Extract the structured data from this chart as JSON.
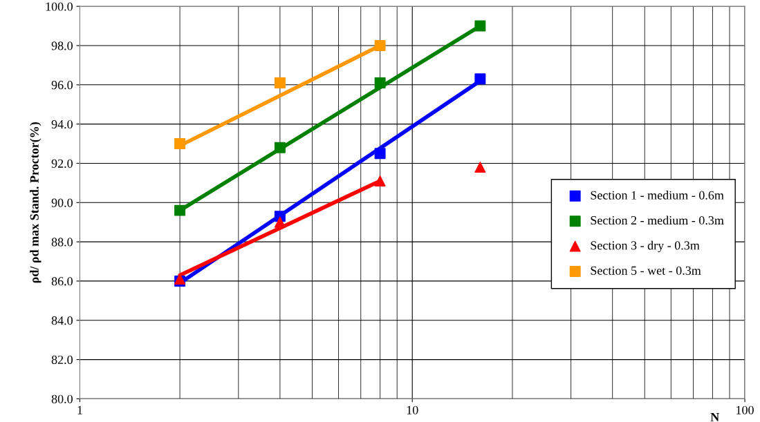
{
  "chart_data": {
    "type": "scatter",
    "xlabel": "N",
    "ylabel": "ρd/ ρd max Stand. Proctor(%)",
    "log": "x",
    "xlim": [
      1,
      100
    ],
    "xticks": [
      1,
      10,
      100
    ],
    "ylim": [
      80,
      100
    ],
    "yticks": [
      {
        "value": 80,
        "label": "80.0"
      },
      {
        "value": 82,
        "label": "82.0"
      },
      {
        "value": 84,
        "label": "84.0"
      },
      {
        "value": 86,
        "label": "86.0"
      },
      {
        "value": 88,
        "label": "88.0"
      },
      {
        "value": 90,
        "label": "90.0"
      },
      {
        "value": 92,
        "label": "92.0"
      },
      {
        "value": 94,
        "label": "94.0"
      },
      {
        "value": 96,
        "label": "96.0"
      },
      {
        "value": 98,
        "label": "98.0"
      },
      {
        "value": 100,
        "label": "100.0"
      }
    ],
    "grid": true,
    "legend": "right",
    "series": [
      {
        "type": "line",
        "color": "#0000ff",
        "x": [
          2,
          16
        ],
        "values": [
          85.9,
          96.2
        ],
        "marker": "none"
      },
      {
        "type": "line",
        "color": "#008000",
        "x": [
          2,
          16
        ],
        "values": [
          89.6,
          99.0
        ],
        "marker": "none"
      },
      {
        "type": "line",
        "color": "#ff0000",
        "x": [
          2,
          8
        ],
        "values": [
          86.3,
          91.1
        ],
        "marker": "none"
      },
      {
        "type": "line",
        "color": "#ff9900",
        "x": [
          2,
          8
        ],
        "values": [
          92.9,
          98.0
        ],
        "marker": "none"
      },
      {
        "name": "Section 1 - medium - 0.6m",
        "color": "#0000ff",
        "x": [
          2,
          4,
          8,
          16
        ],
        "values": [
          86.0,
          89.3,
          92.5,
          96.3
        ],
        "marker": "square"
      },
      {
        "name": "Section 2 - medium - 0.3m",
        "color": "#008000",
        "x": [
          2,
          4,
          8,
          16
        ],
        "values": [
          89.6,
          92.8,
          96.1,
          99.0
        ],
        "marker": "square"
      },
      {
        "name": "Section 3 - dry - 0.3m",
        "color": "#ff0000",
        "x": [
          2,
          4,
          8,
          16
        ],
        "values": [
          86.1,
          89.0,
          91.1,
          91.8
        ],
        "marker": "triangle"
      },
      {
        "name": "Section 5 - wet - 0.3m",
        "color": "#ff9900",
        "x": [
          2,
          4,
          8
        ],
        "values": [
          93.0,
          96.1,
          98.0
        ],
        "marker": "square"
      }
    ]
  }
}
